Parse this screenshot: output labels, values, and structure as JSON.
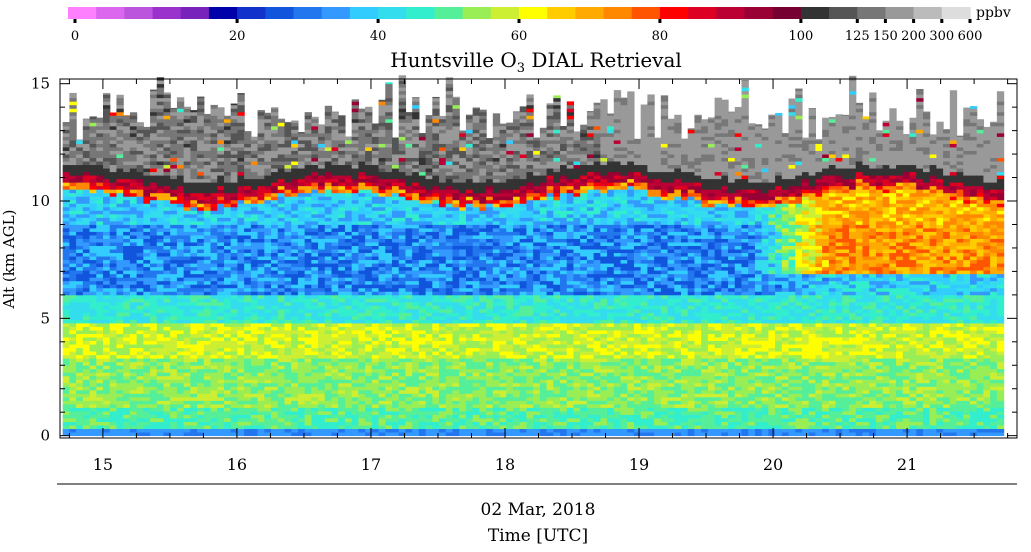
{
  "chart_data": {
    "type": "heatmap",
    "title_main": "Huntsville O",
    "title_sub": "3",
    "title_rest": " DIAL Retrieval",
    "ylabel": "Alt (km AGL)",
    "date_label": "02 Mar, 2018",
    "xlabel": "Time [UTC]",
    "x_ticks": [
      "15",
      "16",
      "17",
      "18",
      "19",
      "20",
      "21"
    ],
    "x_tick_values": [
      15,
      16,
      17,
      18,
      19,
      20,
      21
    ],
    "xlim": [
      14.68,
      21.82
    ],
    "y_ticks": [
      "0",
      "5",
      "10",
      "15"
    ],
    "y_tick_values": [
      0,
      5,
      10,
      15
    ],
    "ylim": [
      -0.1,
      15.2
    ],
    "data_extent": {
      "x": [
        14.7,
        21.72
      ],
      "y": [
        0,
        15
      ]
    },
    "colorbar": {
      "unit": "ppbv",
      "labels": [
        "0",
        "20",
        "40",
        "60",
        "80",
        "100",
        "125",
        "150",
        "200",
        "300",
        "600"
      ],
      "colors": [
        "#ff80ff",
        "#dd66ee",
        "#bb55dd",
        "#9933cc",
        "#7722bb",
        "#0000aa",
        "#1133cc",
        "#1155dd",
        "#2277ee",
        "#3399ff",
        "#33ccff",
        "#33ddee",
        "#33eecc",
        "#55ee99",
        "#99ee55",
        "#ccee33",
        "#ffff00",
        "#ffcc00",
        "#ffaa00",
        "#ff8800",
        "#ff5500",
        "#ff0000",
        "#dd0022",
        "#bb0033",
        "#990033",
        "#770033",
        "#333333",
        "#555555",
        "#777777",
        "#999999",
        "#bbbbbb",
        "#dddddd"
      ]
    }
  }
}
